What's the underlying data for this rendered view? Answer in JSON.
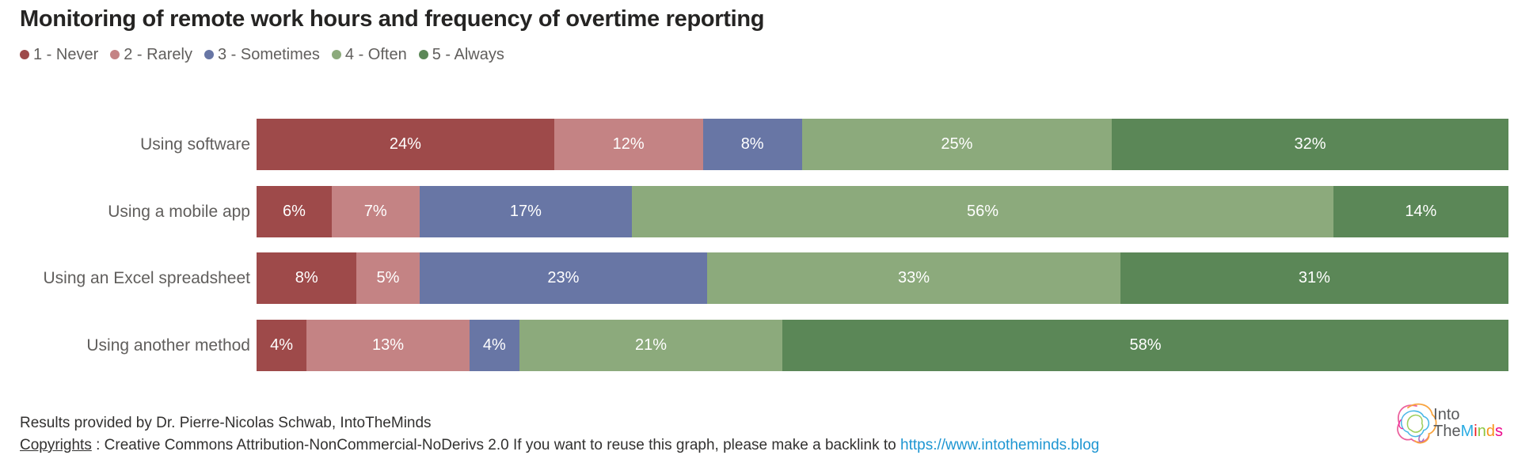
{
  "title": "Monitoring of remote work hours and frequency of overtime reporting",
  "legend": [
    {
      "label": "1 - Never",
      "color": "#9e4a4a"
    },
    {
      "label": "2 - Rarely",
      "color": "#c48384"
    },
    {
      "label": "3 - Sometimes",
      "color": "#6876a5"
    },
    {
      "label": "4 - Often",
      "color": "#8caa7c"
    },
    {
      "label": "5 - Always",
      "color": "#5b8757"
    }
  ],
  "chart_data": {
    "type": "bar",
    "orientation": "horizontal",
    "stacked": true,
    "percent_stacked": true,
    "unit": "%",
    "title": "Monitoring of remote work hours and frequency of overtime reporting",
    "categories": [
      "Using software",
      "Using a mobile app",
      "Using an Excel spreadsheet",
      "Using another method"
    ],
    "series": [
      {
        "name": "1 - Never",
        "color": "#9e4a4a",
        "values": [
          24,
          6,
          8,
          4
        ]
      },
      {
        "name": "2 - Rarely",
        "color": "#c48384",
        "values": [
          12,
          7,
          5,
          13
        ]
      },
      {
        "name": "3 - Sometimes",
        "color": "#6876a5",
        "values": [
          8,
          17,
          23,
          4
        ]
      },
      {
        "name": "4 - Often",
        "color": "#8caa7c",
        "values": [
          25,
          56,
          33,
          21
        ]
      },
      {
        "name": "5 - Always",
        "color": "#5b8757",
        "values": [
          32,
          14,
          31,
          58
        ]
      }
    ],
    "value_labels": "inside-center-white-percent",
    "legend_position": "top-left",
    "xlabel": "",
    "ylabel": "",
    "xlim": [
      0,
      100
    ],
    "grid": false
  },
  "footer": {
    "line1": "Results provided by Dr. Pierre-Nicolas Schwab, IntoTheMinds",
    "copyrights_label": "Copyrights",
    "copyright_text": " : Creative Commons Attribution-NonCommercial-NoDerivs 2.0 If you want to reuse this graph, please make a backlink to ",
    "link": "https://www.intotheminds.blog",
    "link_color": "#1e96d2"
  },
  "logo": {
    "line1": "Into",
    "line2_gray": "The",
    "line2_colored": [
      {
        "ch": "M",
        "color": "#29abe2"
      },
      {
        "ch": "i",
        "color": "#ed1c24"
      },
      {
        "ch": "n",
        "color": "#8cc63f"
      },
      {
        "ch": "d",
        "color": "#f7941d"
      },
      {
        "ch": "s",
        "color": "#ec098c"
      }
    ]
  }
}
